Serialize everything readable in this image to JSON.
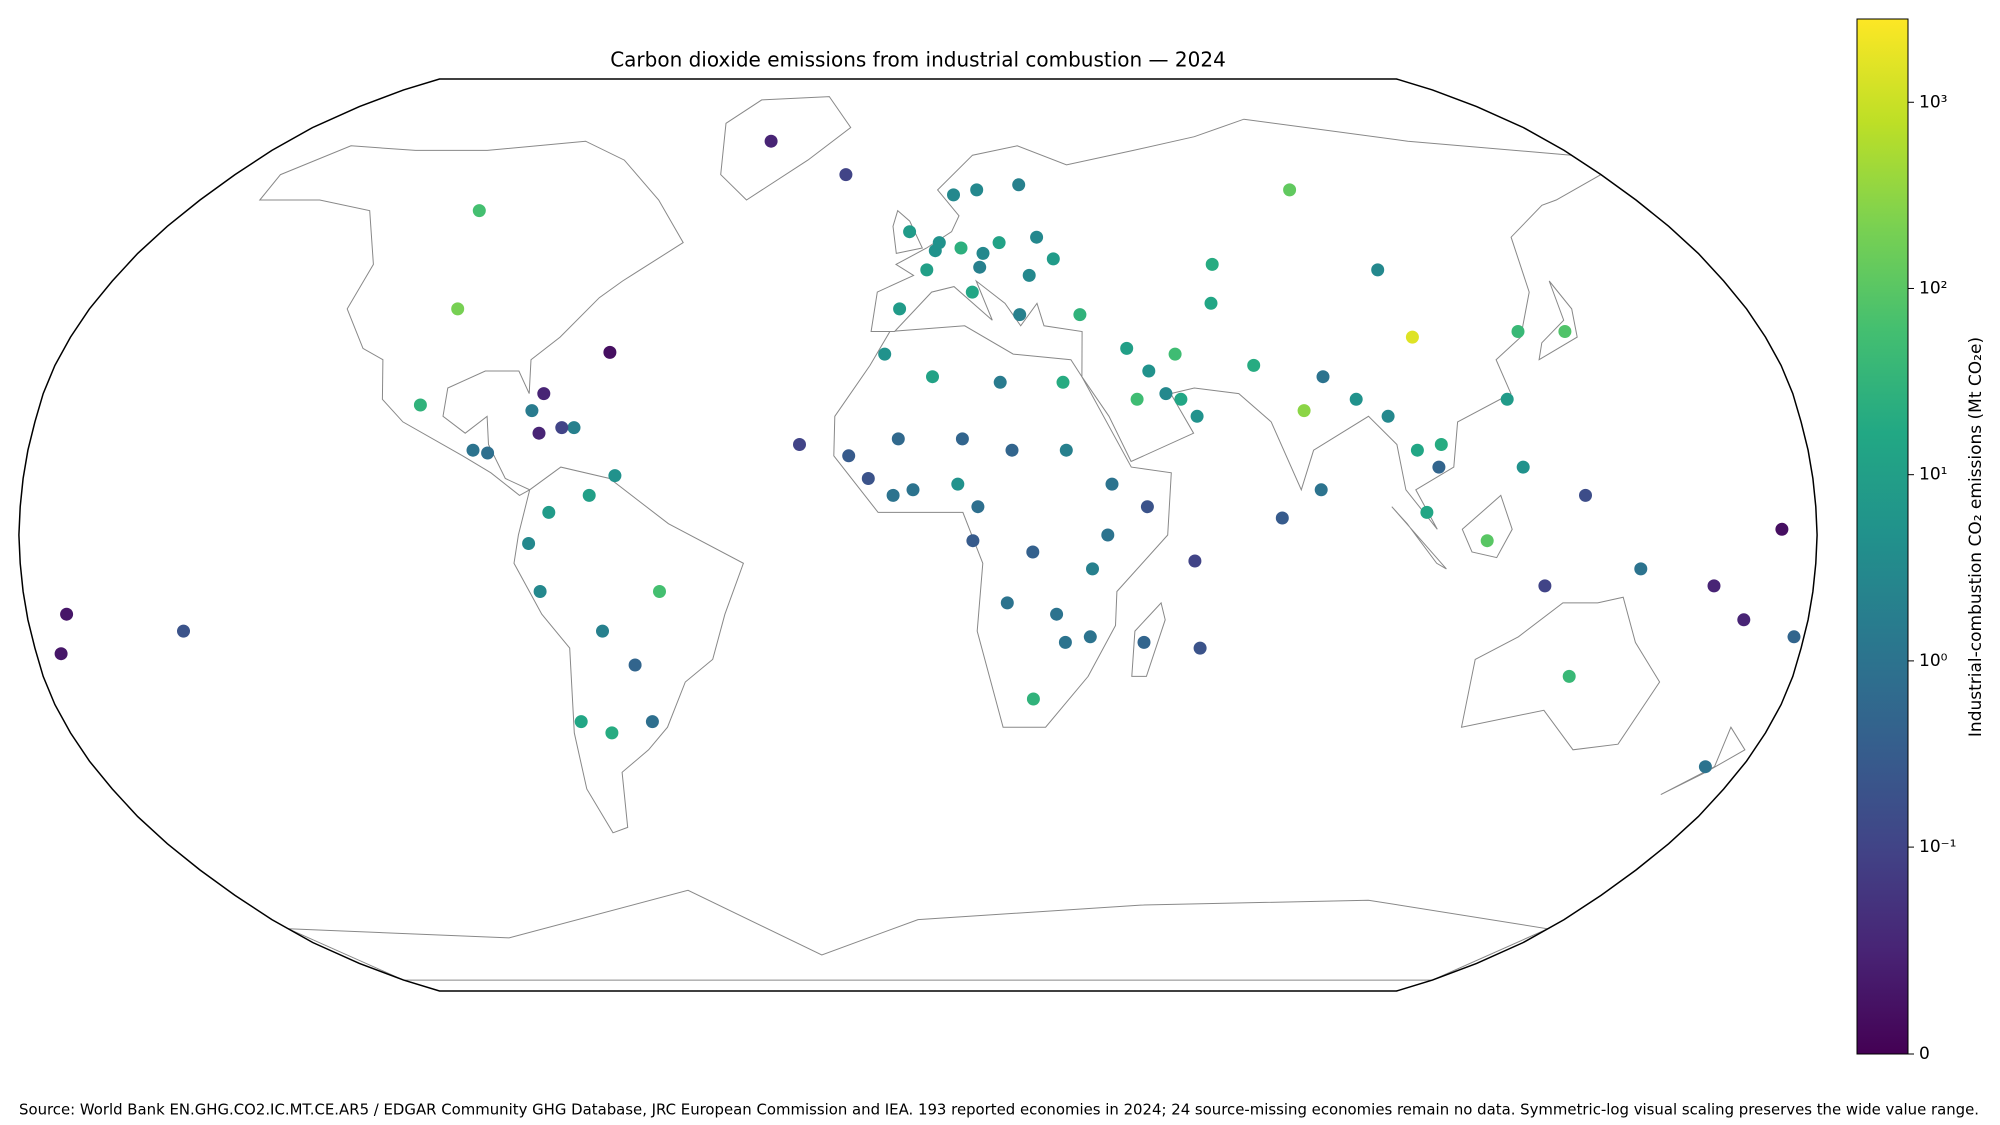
{
  "chart_data": {
    "type": "scatter",
    "projection": "robinson",
    "title": "Carbon dioxide emissions from industrial combustion — 2024",
    "colorbar_label": "Industrial-combustion CO₂ emissions (Mt CO₂e)",
    "source": "Source: World Bank EN.GHG.CO2.IC.MT.CE.AR5 / EDGAR Community GHG Database, JRC European Commission and IEA. 193 reported economies in 2024; 24 source-missing economies remain no data. Symmetric-log visual scaling preserves the wide value range.",
    "colormap": "viridis",
    "scale": "symlog",
    "linthresh": 0.1,
    "clim": [
      0,
      2800
    ],
    "cticks": [
      0,
      {
        "value": 0.1,
        "label": "10⁻¹"
      },
      {
        "value": 1,
        "label": "10⁰"
      },
      {
        "value": 10,
        "label": "10¹"
      },
      {
        "value": 100,
        "label": "10²"
      },
      {
        "value": 1000,
        "label": "10³"
      }
    ],
    "x": [
      105,
      79,
      -100,
      95,
      138,
      128,
      -108,
      114,
      -52,
      -102,
      45,
      54,
      35,
      10,
      134,
      24,
      -65,
      30,
      70,
      67,
      106,
      101,
      102,
      12,
      2,
      -2,
      -4,
      19,
      31,
      3,
      8,
      122,
      90,
      -71,
      -74,
      -66,
      -76,
      64,
      44,
      54,
      57,
      51,
      48,
      -7,
      15,
      26,
      9,
      5,
      4,
      15,
      14,
      25,
      22,
      28,
      96,
      104,
      121,
      39,
      38,
      35,
      30,
      17,
      18,
      28,
      30,
      35,
      46,
      -1,
      -5,
      -14,
      -10,
      -4,
      9,
      19,
      12,
      23,
      11,
      46,
      -90,
      -87,
      -79,
      -70,
      -72.5,
      -77,
      -77,
      -61,
      -78,
      -64,
      -58,
      -56,
      -19,
      -64.8,
      81,
      84,
      105,
      145,
      172,
      178,
      160,
      167,
      -172,
      -175,
      -149,
      57.5,
      55.5,
      73,
      -24,
      -42,
      173,
      134,
      126
    ],
    "y": [
      35,
      22,
      40,
      62,
      36,
      36,
      58,
      -1,
      -10,
      23,
      24,
      32,
      39,
      51,
      -25,
      -29,
      -35,
      27,
      30,
      48,
      16,
      15,
      4,
      43,
      47,
      54,
      40,
      52,
      49,
      28,
      9,
      12,
      24,
      -33,
      4,
      7,
      -10,
      41,
      33,
      24,
      21,
      25,
      29,
      32,
      62,
      63,
      61,
      52,
      50.5,
      50,
      47.5,
      46,
      39,
      53,
      21,
      47,
      24,
      9,
      0,
      -6,
      15,
      27,
      -12,
      -14,
      -19,
      -18,
      -19,
      8,
      7,
      14,
      10,
      17,
      17,
      15,
      5,
      -3,
      -1,
      5,
      15,
      14.5,
      22,
      19,
      19,
      18,
      25,
      10.5,
      -1.5,
      -17,
      -23,
      -33,
      65,
      32.3,
      8,
      28,
      12,
      -6,
      -41,
      -18,
      -9,
      -15,
      -14,
      -21,
      -17,
      -20,
      -4.6,
      3,
      16,
      72,
      1,
      7,
      -9
    ],
    "values": [
      1500,
      300,
      200,
      120,
      80,
      40,
      60,
      100,
      60,
      30,
      50,
      50,
      30,
      25,
      40,
      30,
      20,
      20,
      20,
      20,
      20,
      15,
      15,
      15,
      10,
      8,
      8,
      12,
      8,
      12,
      5,
      5,
      5,
      15,
      8,
      10,
      3,
      15,
      10,
      15,
      5,
      3,
      5,
      5,
      3,
      2,
      3,
      5,
      5,
      3,
      2,
      3,
      2,
      3,
      3,
      3,
      8,
      1,
      1,
      2,
      2,
      1.5,
      1,
      1,
      1,
      1,
      0.5,
      1,
      1,
      0.3,
      0.2,
      0.6,
      0.5,
      0.5,
      0.8,
      0.4,
      0.3,
      0.2,
      1,
      0.8,
      1.5,
      2,
      0.1,
      0.05,
      0.05,
      5,
      3,
      2,
      0.5,
      0.8,
      0.1,
      0.02,
      1,
      1,
      0.5,
      1,
      1,
      0.5,
      0.05,
      0.05,
      0.03,
      0.03,
      0.2,
      0.2,
      0.1,
      0.3,
      0.1,
      0.05,
      0.02,
      0.15,
      0.1
    ]
  }
}
